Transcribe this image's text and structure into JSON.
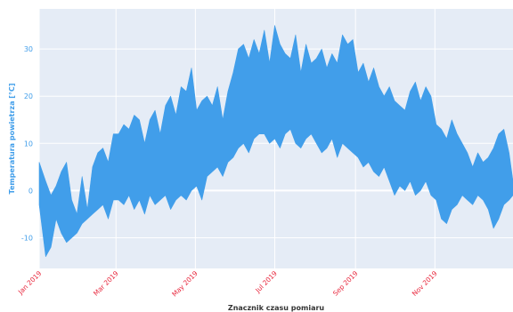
{
  "chart_data": {
    "type": "area",
    "title": "",
    "xlabel": "Znacznik czasu pomiaru",
    "ylabel": "Temperatura powietrza [°C]",
    "x_range": [
      "2019-01-01",
      "2019-12-31"
    ],
    "ylim": [
      -16.5,
      38.5
    ],
    "y_ticks": [
      -10,
      0,
      10,
      20,
      30
    ],
    "x_ticks": [
      {
        "date": "2019-01-01",
        "label": "Jan 2019"
      },
      {
        "date": "2019-03-01",
        "label": "Mar 2019"
      },
      {
        "date": "2019-05-01",
        "label": "May 2019"
      },
      {
        "date": "2019-07-01",
        "label": "Jul 2019"
      },
      {
        "date": "2019-09-01",
        "label": "Sep 2019"
      },
      {
        "date": "2019-11-01",
        "label": "Nov 2019"
      }
    ],
    "grid": true,
    "fill_to": 0,
    "series": [
      {
        "color": "#419eea",
        "x": [
          "2019-01-01",
          "2019-01-06",
          "2019-01-10",
          "2019-01-14",
          "2019-01-18",
          "2019-01-22",
          "2019-01-26",
          "2019-01-30",
          "2019-02-03",
          "2019-02-07",
          "2019-02-11",
          "2019-02-15",
          "2019-02-19",
          "2019-02-23",
          "2019-02-27",
          "2019-03-03",
          "2019-03-07",
          "2019-03-11",
          "2019-03-15",
          "2019-03-19",
          "2019-03-23",
          "2019-03-27",
          "2019-03-31",
          "2019-04-04",
          "2019-04-08",
          "2019-04-12",
          "2019-04-16",
          "2019-04-20",
          "2019-04-24",
          "2019-04-28",
          "2019-05-02",
          "2019-05-06",
          "2019-05-10",
          "2019-05-14",
          "2019-05-18",
          "2019-05-22",
          "2019-05-26",
          "2019-05-30",
          "2019-06-03",
          "2019-06-07",
          "2019-06-11",
          "2019-06-15",
          "2019-06-19",
          "2019-06-23",
          "2019-06-27",
          "2019-07-01",
          "2019-07-05",
          "2019-07-09",
          "2019-07-13",
          "2019-07-17",
          "2019-07-21",
          "2019-07-25",
          "2019-07-29",
          "2019-08-02",
          "2019-08-06",
          "2019-08-10",
          "2019-08-14",
          "2019-08-18",
          "2019-08-22",
          "2019-08-26",
          "2019-08-30",
          "2019-09-03",
          "2019-09-07",
          "2019-09-11",
          "2019-09-15",
          "2019-09-19",
          "2019-09-23",
          "2019-09-27",
          "2019-10-01",
          "2019-10-05",
          "2019-10-09",
          "2019-10-13",
          "2019-10-17",
          "2019-10-21",
          "2019-10-25",
          "2019-10-29",
          "2019-11-02",
          "2019-11-06",
          "2019-11-10",
          "2019-11-14",
          "2019-11-18",
          "2019-11-22",
          "2019-11-26",
          "2019-11-30",
          "2019-12-04",
          "2019-12-08",
          "2019-12-12",
          "2019-12-16",
          "2019-12-20",
          "2019-12-24",
          "2019-12-28",
          "2019-12-31"
        ],
        "y_max": [
          6,
          2,
          -1,
          1,
          4,
          6,
          -2,
          -5,
          3,
          -4,
          5,
          8,
          9,
          6,
          12,
          12,
          14,
          13,
          16,
          15,
          10,
          15,
          17,
          12,
          18,
          20,
          16,
          22,
          21,
          26,
          17,
          19,
          20,
          18,
          22,
          15,
          21,
          25,
          30,
          31,
          28,
          32,
          29,
          34,
          27,
          35,
          31,
          29,
          28,
          33,
          25,
          31,
          27,
          28,
          30,
          26,
          29,
          27,
          33,
          31,
          32,
          25,
          27,
          23,
          26,
          22,
          20,
          22,
          19,
          18,
          17,
          21,
          23,
          19,
          22,
          20,
          14,
          13,
          11,
          15,
          12,
          10,
          8,
          5,
          8,
          6,
          7,
          9,
          12,
          13,
          8,
          2
        ],
        "y_min": [
          -3,
          -14,
          -12,
          -6,
          -9,
          -11,
          -10,
          -9,
          -7,
          -6,
          -5,
          -4,
          -3,
          -6,
          -2,
          -2,
          -3,
          -1,
          -4,
          -2,
          -5,
          -1,
          -3,
          -2,
          -1,
          -4,
          -2,
          -1,
          -2,
          0,
          1,
          -2,
          3,
          4,
          5,
          3,
          6,
          7,
          9,
          10,
          8,
          11,
          12,
          12,
          10,
          11,
          9,
          12,
          13,
          10,
          9,
          11,
          12,
          10,
          8,
          9,
          11,
          7,
          10,
          9,
          8,
          7,
          5,
          6,
          4,
          3,
          5,
          2,
          -1,
          1,
          0,
          2,
          -1,
          0,
          2,
          -1,
          -2,
          -6,
          -7,
          -4,
          -3,
          -1,
          -2,
          -3,
          -1,
          -2,
          -4,
          -8,
          -6,
          -3,
          -2,
          -1
        ]
      }
    ]
  }
}
